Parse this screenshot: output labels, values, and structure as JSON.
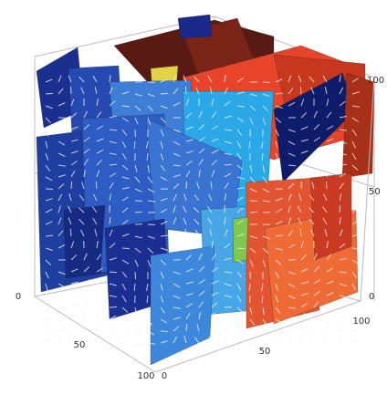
{
  "axes": {
    "x_ticks": [
      0,
      50,
      100
    ],
    "y_ticks": [
      0,
      50,
      100
    ],
    "z_ticks": [
      0,
      50,
      100
    ]
  }
}
